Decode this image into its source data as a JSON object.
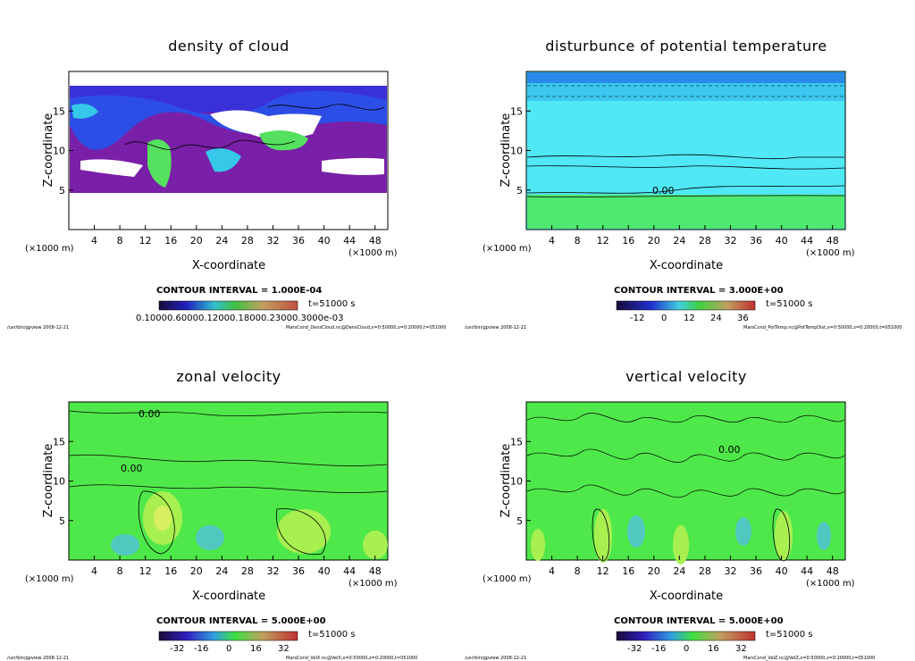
{
  "colors": {
    "purple": "#7a1fa8",
    "blue": "#2036e0",
    "cyan": "#4fe8f4",
    "green": "#4fe84a",
    "light_green": "#a8f050",
    "white": "#ffffff"
  },
  "common": {
    "xlabel": "X-coordinate",
    "ylabel": "Z-coordinate",
    "x_unit": "(×1000 m)",
    "time": "t=51000 s",
    "footer_left": "/usr/bin/gpview   2008-12-21"
  },
  "chart_data": [
    {
      "type": "heatmap",
      "title": "density of cloud",
      "xlabel": "X-coordinate",
      "ylabel": "Z-coordinate",
      "xlim": [
        0,
        50
      ],
      "ylim": [
        0,
        20
      ],
      "xticks": [
        4,
        8,
        12,
        16,
        20,
        24,
        28,
        32,
        36,
        40,
        44,
        48
      ],
      "yticks": [
        5,
        10,
        15
      ],
      "contour_interval": "CONTOUR INTERVAL = 1.000E-04",
      "colorbar_ticks": [
        "0.1000E-03",
        "0.6000E-03",
        "0.1200E-02",
        "0.1800E-02",
        "0.2300E-02",
        "0.3000E-02"
      ],
      "colorbar_text": "0.10000.60000.12000.18000.23000.3000e-03",
      "footer": "MarsCond_DensCloud.nc@DensCloud,x=0:50000,z=0:20000,t=051000"
    },
    {
      "type": "heatmap",
      "title": "disturbunce of potential temperature",
      "xlabel": "X-coordinate",
      "ylabel": "Z-coordinate",
      "xlim": [
        0,
        50
      ],
      "ylim": [
        0,
        20
      ],
      "xticks": [
        4,
        8,
        12,
        16,
        20,
        24,
        28,
        32,
        36,
        40,
        44,
        48
      ],
      "yticks": [
        5,
        10,
        15
      ],
      "contour_interval": "CONTOUR INTERVAL = 3.000E+00",
      "colorbar_ticks": [
        "-12",
        "0",
        "12",
        "24",
        "36"
      ],
      "annotations": [
        "0.00"
      ],
      "footer": "MarsCond_PotTemp.nc@PotTempDist,x=0:50000,z=0:20000,t=051000"
    },
    {
      "type": "heatmap",
      "title": "zonal velocity",
      "xlabel": "X-coordinate",
      "ylabel": "Z-coordinate",
      "xlim": [
        0,
        50
      ],
      "ylim": [
        0,
        20
      ],
      "xticks": [
        4,
        8,
        12,
        16,
        20,
        24,
        28,
        32,
        36,
        40,
        44,
        48
      ],
      "yticks": [
        5,
        10,
        15
      ],
      "contour_interval": "CONTOUR INTERVAL = 5.000E+00",
      "colorbar_ticks": [
        "-32",
        "-16",
        "0",
        "16",
        "32"
      ],
      "annotations": [
        "0.00"
      ],
      "footer": "MarsCond_VelX.nc@VelX,x=0:50000,z=0:20000,t=051000"
    },
    {
      "type": "heatmap",
      "title": "vertical velocity",
      "xlabel": "X-coordinate",
      "ylabel": "Z-coordinate",
      "xlim": [
        0,
        50
      ],
      "ylim": [
        0,
        20
      ],
      "xticks": [
        4,
        8,
        12,
        16,
        20,
        24,
        28,
        32,
        36,
        40,
        44,
        48
      ],
      "yticks": [
        5,
        10,
        15
      ],
      "contour_interval": "CONTOUR INTERVAL = 5.000E+00",
      "colorbar_ticks": [
        "-32",
        "-16",
        "0",
        "16",
        "32"
      ],
      "annotations": [
        "0.00"
      ],
      "footer": "MarsCond_VelZ.nc@VelZ,x=0:50000,z=0:20000,t=051000"
    }
  ]
}
